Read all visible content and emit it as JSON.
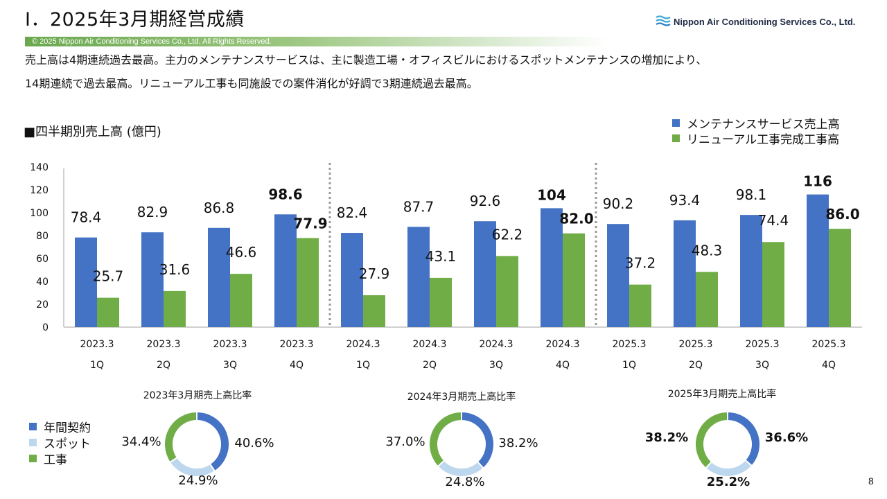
{
  "header": {
    "title": "Ⅰ．2025年3月期経営成績",
    "logo_text": "Nippon Air Conditioning Services Co., Ltd.",
    "logo_icon": "wave-icon",
    "copyright": "© 2025 Nippon Air Conditioning Services Co., Ltd. All Rights Reserved."
  },
  "summary": {
    "line1": "売上高は4期連続過去最高。主力のメンテナンスサービスは、主に製造工場・オフィスビルにおけるスポットメンテナンスの増加により、",
    "line2": "14期連続で過去最高。リニューアル工事も同施設での案件消化が好調で3期連続過去最高。"
  },
  "section_label": "■四半期別売上高 (億円)",
  "page_number": "8",
  "colors": {
    "maintenance": "#4472c4",
    "renewal": "#70ad47",
    "annual": "#4472c4",
    "spot": "#bdd7ee",
    "construction": "#70ad47"
  },
  "legend_main": [
    {
      "label": "メンテナンスサービス売上高",
      "color": "#4472c4"
    },
    {
      "label": "リニューアル工事完成工事高",
      "color": "#70ad47"
    }
  ],
  "legend_pie": [
    {
      "label": "年間契約",
      "color": "#4472c4"
    },
    {
      "label": "スポット",
      "color": "#bdd7ee"
    },
    {
      "label": "工事",
      "color": "#70ad47"
    }
  ],
  "chart_data": [
    {
      "type": "bar",
      "title": "四半期別売上高 (億円)",
      "categories": [
        "2023.3 1Q",
        "2023.3 2Q",
        "2023.3 3Q",
        "2023.3 4Q",
        "2024.3 1Q",
        "2024.3 2Q",
        "2024.3 3Q",
        "2024.3 4Q",
        "2025.3 1Q",
        "2025.3 2Q",
        "2025.3 3Q",
        "2025.3 4Q"
      ],
      "category_lines": [
        [
          "2023.3",
          "1Q"
        ],
        [
          "2023.3",
          "2Q"
        ],
        [
          "2023.3",
          "3Q"
        ],
        [
          "2023.3",
          "4Q"
        ],
        [
          "2024.3",
          "1Q"
        ],
        [
          "2024.3",
          "2Q"
        ],
        [
          "2024.3",
          "3Q"
        ],
        [
          "2024.3",
          "4Q"
        ],
        [
          "2025.3",
          "1Q"
        ],
        [
          "2025.3",
          "2Q"
        ],
        [
          "2025.3",
          "3Q"
        ],
        [
          "2025.3",
          "4Q"
        ]
      ],
      "series": [
        {
          "name": "メンテナンスサービス売上高",
          "values": [
            78.4,
            82.9,
            86.8,
            98.6,
            82.4,
            87.7,
            92.6,
            104,
            90.2,
            93.4,
            98.1,
            116
          ],
          "labels": [
            "78.4",
            "82.9",
            "86.8",
            "98.6",
            "82.4",
            "87.7",
            "92.6",
            "104",
            "90.2",
            "93.4",
            "98.1",
            "116"
          ],
          "bold": [
            false,
            false,
            false,
            true,
            false,
            false,
            false,
            true,
            false,
            false,
            false,
            true
          ]
        },
        {
          "name": "リニューアル工事完成工事高",
          "values": [
            25.7,
            31.6,
            46.6,
            77.9,
            27.9,
            43.1,
            62.2,
            82.0,
            37.2,
            48.3,
            74.4,
            86.0
          ],
          "labels": [
            "25.7",
            "31.6",
            "46.6",
            "77.9",
            "27.9",
            "43.1",
            "62.2",
            "82.0",
            "37.2",
            "48.3",
            "74.4",
            "86.0"
          ],
          "bold": [
            false,
            false,
            false,
            true,
            false,
            false,
            false,
            true,
            false,
            false,
            false,
            true
          ]
        }
      ],
      "yticks": [
        "0",
        "20",
        "40",
        "60",
        "80",
        "100",
        "120",
        "140"
      ],
      "ylim": [
        0,
        140
      ],
      "grid": false,
      "legend": "top-right"
    },
    {
      "type": "pie",
      "title": "2023年3月期売上高比率",
      "labels": [
        "年間契約",
        "スポット",
        "工事"
      ],
      "values": [
        40.6,
        24.9,
        34.4
      ],
      "value_labels": [
        "40.6%",
        "24.9%",
        "34.4%"
      ],
      "bold": false
    },
    {
      "type": "pie",
      "title": "2024年3月期売上高比率",
      "labels": [
        "年間契約",
        "スポット",
        "工事"
      ],
      "values": [
        38.2,
        24.8,
        37.0
      ],
      "value_labels": [
        "38.2%",
        "24.8%",
        "37.0%"
      ],
      "bold": false
    },
    {
      "type": "pie",
      "title": "2025年3月期売上高比率",
      "labels": [
        "年間契約",
        "スポット",
        "工事"
      ],
      "values": [
        36.6,
        25.2,
        38.2
      ],
      "value_labels": [
        "36.6%",
        "25.2%",
        "38.2%"
      ],
      "bold": true
    }
  ]
}
